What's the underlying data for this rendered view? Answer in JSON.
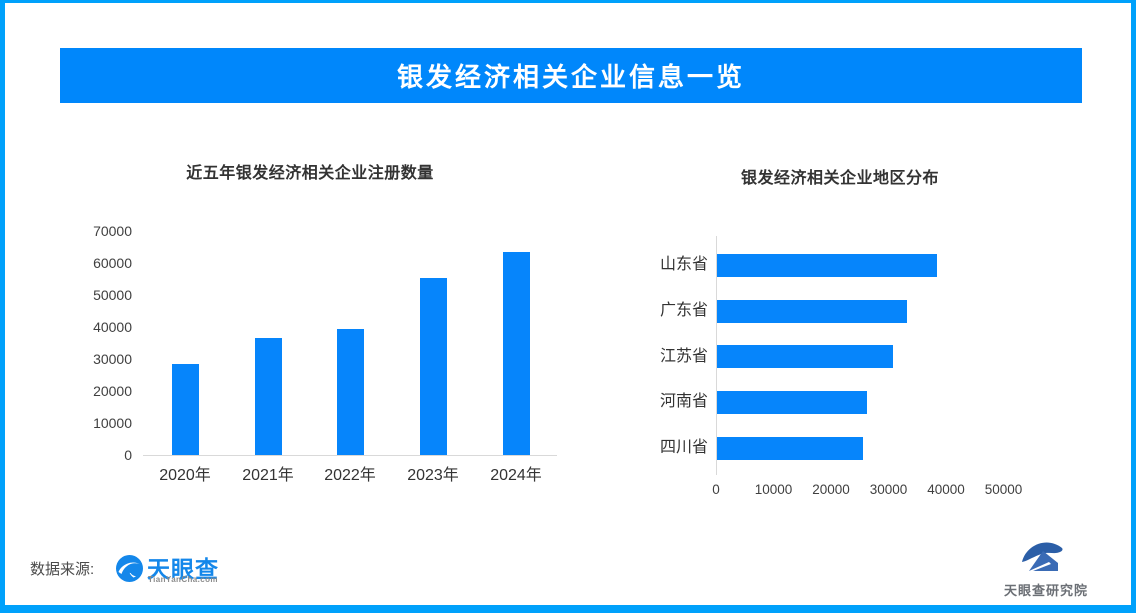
{
  "banner": {
    "title": "银发经济相关企业信息一览"
  },
  "chart_data": [
    {
      "type": "bar",
      "orientation": "vertical",
      "title": "近五年银发经济相关企业注册数量",
      "categories": [
        "2020年",
        "2021年",
        "2022年",
        "2023年",
        "2024年"
      ],
      "values": [
        28500,
        36500,
        39500,
        55300,
        63400
      ],
      "xlabel": "",
      "ylabel": "",
      "ylim": [
        0,
        70000
      ],
      "yticks": [
        0,
        10000,
        20000,
        30000,
        40000,
        50000,
        60000,
        70000
      ],
      "grid": false,
      "legend": false,
      "bar_color": "#0685fb"
    },
    {
      "type": "bar",
      "orientation": "horizontal",
      "title": "银发经济相关企业地区分布",
      "categories": [
        "山东省",
        "广东省",
        "江苏省",
        "河南省",
        "四川省"
      ],
      "values": [
        38200,
        33000,
        30600,
        26000,
        25400
      ],
      "xlabel": "",
      "ylabel": "",
      "xlim": [
        0,
        52000
      ],
      "xticks": [
        0,
        10000,
        20000,
        30000,
        40000,
        50000
      ],
      "grid": false,
      "legend": false,
      "bar_color": "#0685fb"
    }
  ],
  "footer": {
    "source_label": "数据来源:",
    "tianyancha": {
      "name": "天眼查",
      "domain": "TianYanCha.com"
    },
    "research_institute": {
      "name": "天眼查研究院"
    }
  },
  "colors": {
    "frame_border": "#00a1fb",
    "banner_bg": "#0087fb",
    "banner_text": "#ffffff",
    "bar": "#0685fb",
    "axis_line": "#d9d9d9",
    "title_text": "#333333",
    "tick_text": "#404040",
    "tianyancha_blue": "#1487ea"
  }
}
